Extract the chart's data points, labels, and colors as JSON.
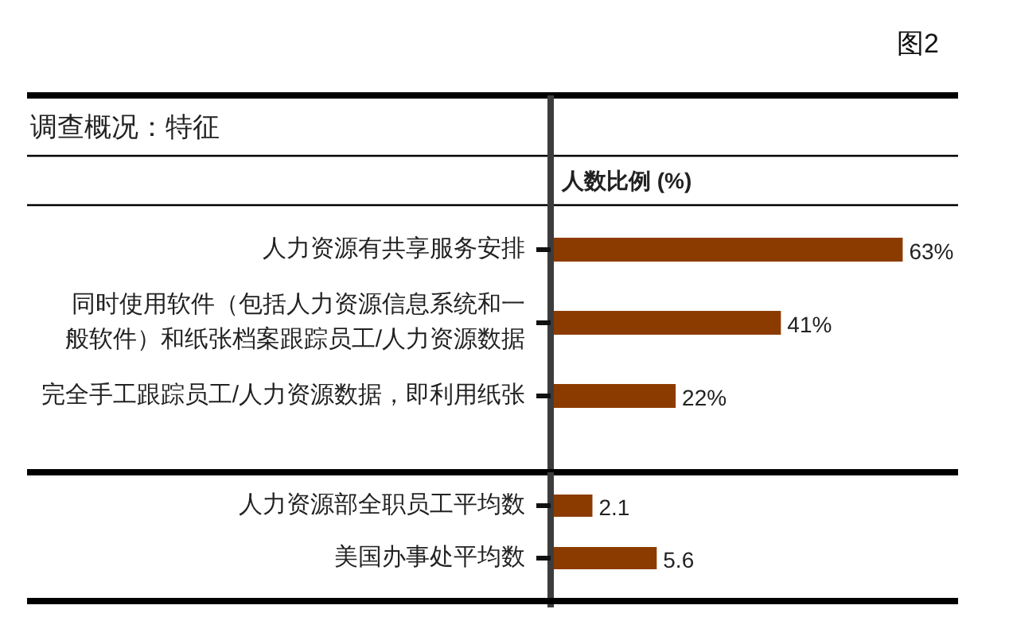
{
  "chart_data": [
    {
      "type": "bar",
      "orientation": "horizontal",
      "title": "调查概况：特征",
      "xlabel": "人数比例 (%)",
      "annotations": [
        "图2"
      ],
      "categories": [
        "人力资源有共享服务安排",
        "同时使用软件（包括人力资源信息系统和一般软件）和纸张档案跟踪员工/人力资源数据",
        "完全手工跟踪员工/人力资源数据，即利用纸张"
      ],
      "values": [
        63,
        41,
        22
      ],
      "color": "#8c3b00",
      "value_labels": [
        "63%",
        "41%",
        "22%"
      ],
      "xlim": [
        0,
        73
      ],
      "tick_labels": "y"
    },
    {
      "type": "bar",
      "orientation": "horizontal",
      "categories": [
        "人力资源部全职员工平均数",
        "美国办事处平均数"
      ],
      "values": [
        2.1,
        5.6
      ],
      "color": "#8c3b00",
      "data_labels": true,
      "xlim": [
        0,
        22
      ],
      "tick_labels": "y"
    }
  ]
}
